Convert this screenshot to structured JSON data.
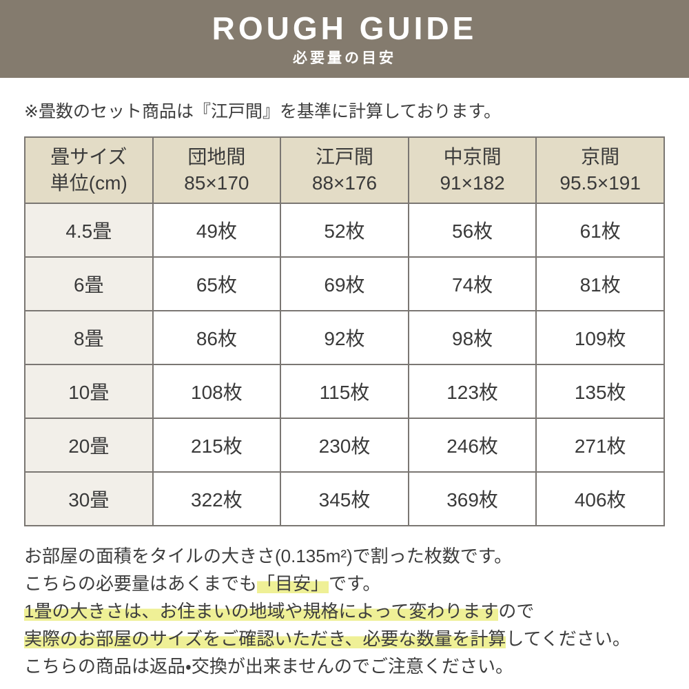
{
  "header": {
    "title": "ROUGH GUIDE",
    "subtitle": "必要量の目安",
    "bg_color": "#847b6e"
  },
  "note": "※畳数のセット商品は『江戸間』を基準に計算しております。",
  "table": {
    "corner_header": [
      "畳サイズ",
      "単位(cm)"
    ],
    "columns": [
      {
        "name": "団地間",
        "size": "85×170"
      },
      {
        "name": "江戸間",
        "size": "88×176"
      },
      {
        "name": "中京間",
        "size": "91×182"
      },
      {
        "name": "京間",
        "size": "95.5×191"
      }
    ],
    "rows": [
      {
        "label": "4.5畳",
        "values": [
          "49枚",
          "52枚",
          "56枚",
          "61枚"
        ]
      },
      {
        "label": "6畳",
        "values": [
          "65枚",
          "69枚",
          "74枚",
          "81枚"
        ]
      },
      {
        "label": "8畳",
        "values": [
          "86枚",
          "92枚",
          "98枚",
          "109枚"
        ]
      },
      {
        "label": "10畳",
        "values": [
          "108枚",
          "115枚",
          "123枚",
          "135枚"
        ]
      },
      {
        "label": "20畳",
        "values": [
          "215枚",
          "230枚",
          "246枚",
          "271枚"
        ]
      },
      {
        "label": "30畳",
        "values": [
          "322枚",
          "345枚",
          "369枚",
          "406枚"
        ]
      }
    ],
    "colors": {
      "header_bg": "#e3dcc6",
      "row_label_bg": "#f2efe9",
      "border": "#7a7672"
    }
  },
  "footer": {
    "highlight_color": "#eff096",
    "lines": [
      {
        "segments": [
          {
            "text": "お部屋の面積をタイルの大きさ(0.135m²)で割った枚数です。",
            "highlight": false
          }
        ]
      },
      {
        "segments": [
          {
            "text": "こちらの必要量はあくまでも",
            "highlight": false
          },
          {
            "text": "「目安」",
            "highlight": true
          },
          {
            "text": "です。",
            "highlight": false
          }
        ]
      },
      {
        "segments": [
          {
            "text": "1畳の大きさは、お住まいの地域や規格によって変わります",
            "highlight": true
          },
          {
            "text": "ので",
            "highlight": false
          }
        ]
      },
      {
        "segments": [
          {
            "text": "実際のお部屋のサイズをご確認いただき、必要な数量を計算",
            "highlight": true
          },
          {
            "text": "してください。",
            "highlight": false
          }
        ]
      },
      {
        "segments": [
          {
            "text": "こちらの商品は返品・交換が出来ませんのでご注意ください。",
            "highlight": false
          }
        ]
      }
    ]
  }
}
